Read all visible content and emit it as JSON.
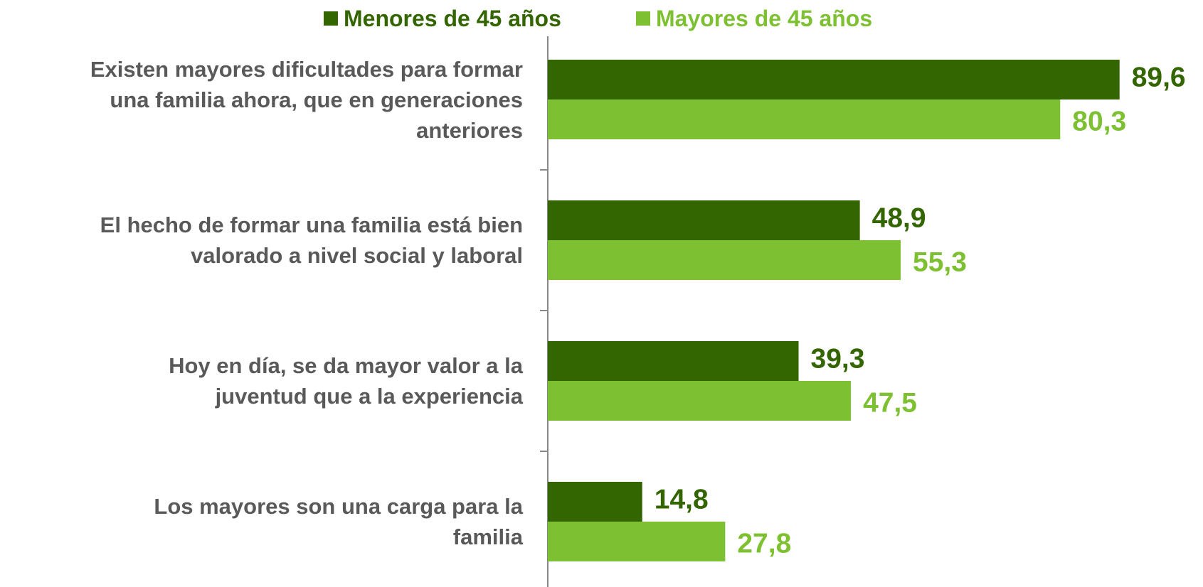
{
  "chart_data": {
    "type": "hbar",
    "categories": [
      "Existen mayores dificultades para formar\nuna familia ahora, que en generaciones\nanteriores",
      "El hecho de formar una familia está bien\nvalorado a nivel social y laboral",
      "Hoy en día, se da mayor valor a la\njuventud que a la experiencia",
      "Los mayores son una carga para la\nfamilia"
    ],
    "series": [
      {
        "name": "Menores de 45 años",
        "color": "#336600",
        "values": [
          89.6,
          48.9,
          39.3,
          14.8
        ],
        "value_labels": [
          "89,6",
          "48,9",
          "39,3",
          "14,8"
        ]
      },
      {
        "name": "Mayores de 45 años",
        "color": "#7dc031",
        "values": [
          80.3,
          55.3,
          47.5,
          27.8
        ],
        "value_labels": [
          "80,3",
          "55,3",
          "47,5",
          "27,8"
        ]
      }
    ],
    "xlim": [
      0,
      100
    ],
    "legend": "top"
  }
}
